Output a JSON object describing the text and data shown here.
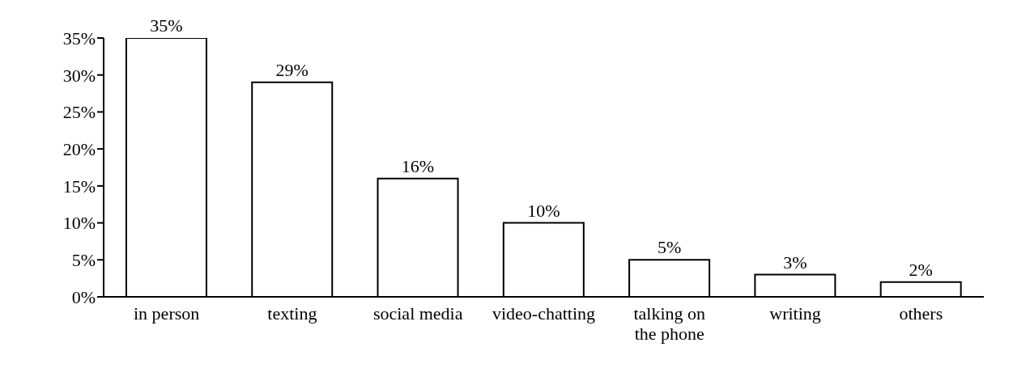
{
  "chart_data": {
    "type": "bar",
    "categories": [
      "in person",
      "texting",
      "social media",
      "video-chatting",
      "talking on the phone",
      "writing",
      "others"
    ],
    "values": [
      35,
      29,
      16,
      10,
      5,
      3,
      2
    ],
    "value_labels": [
      "35%",
      "29%",
      "16%",
      "10%",
      "5%",
      "3%",
      "2%"
    ],
    "color": "#ffffff",
    "ylim": [
      0,
      35
    ],
    "yticks": [
      {
        "value": 0,
        "label": "0%"
      },
      {
        "value": 5,
        "label": "5%"
      },
      {
        "value": 10,
        "label": "10%"
      },
      {
        "value": 15,
        "label": "15%"
      },
      {
        "value": 20,
        "label": "20%"
      },
      {
        "value": 25,
        "label": "25%"
      },
      {
        "value": 30,
        "label": "30%"
      },
      {
        "value": 35,
        "label": "35%"
      }
    ],
    "grid": false,
    "legend": false
  }
}
